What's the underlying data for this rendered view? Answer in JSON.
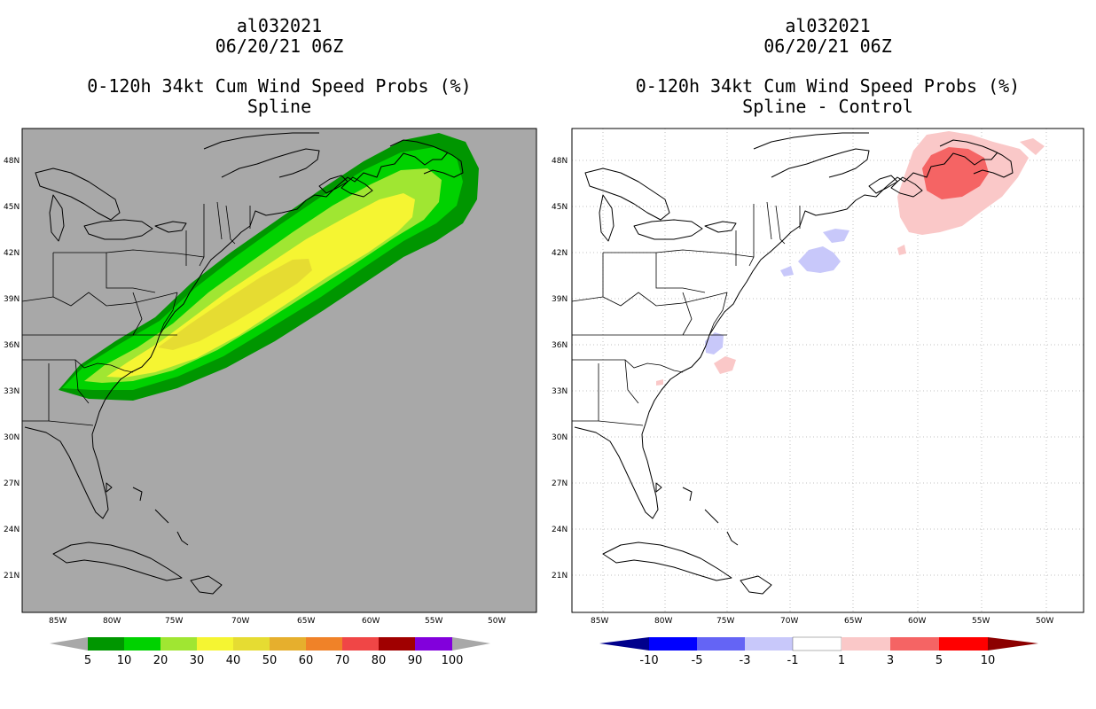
{
  "left_panel": {
    "storm_id": "al032021",
    "datetime": "06/20/21 06Z",
    "product": "0-120h 34kt Cum Wind Speed Probs (%)",
    "subtitle": "Spline",
    "background_color": "#a8a8a8",
    "colorbar": {
      "labels": [
        "5",
        "10",
        "20",
        "30",
        "40",
        "50",
        "60",
        "70",
        "80",
        "90",
        "100"
      ],
      "colors": [
        "#009600",
        "#00d200",
        "#a0e632",
        "#f5f532",
        "#e6dc32",
        "#e6af2d",
        "#f08228",
        "#f04646",
        "#a00000",
        "#8200dc"
      ]
    }
  },
  "right_panel": {
    "storm_id": "al032021",
    "datetime": "06/20/21 06Z",
    "product": "0-120h 34kt Cum Wind Speed Probs (%)",
    "subtitle": "Spline - Control",
    "background_color": "#ffffff",
    "colorbar": {
      "labels": [
        "-10",
        "-5",
        "-3",
        "-1",
        "1",
        "3",
        "5",
        "10"
      ],
      "colors": [
        "#00008c",
        "#0000ff",
        "#6464f5",
        "#c8c8fa",
        "#ffffff",
        "#fac8c8",
        "#f56464",
        "#ff0000",
        "#8c0000"
      ]
    }
  },
  "axes": {
    "lon_labels": [
      "85W",
      "80W",
      "75W",
      "70W",
      "65W",
      "60W",
      "55W",
      "50W"
    ],
    "lat_labels": [
      "48N",
      "45N",
      "42N",
      "39N",
      "36N",
      "33N",
      "30N",
      "27N",
      "24N",
      "21N"
    ]
  }
}
